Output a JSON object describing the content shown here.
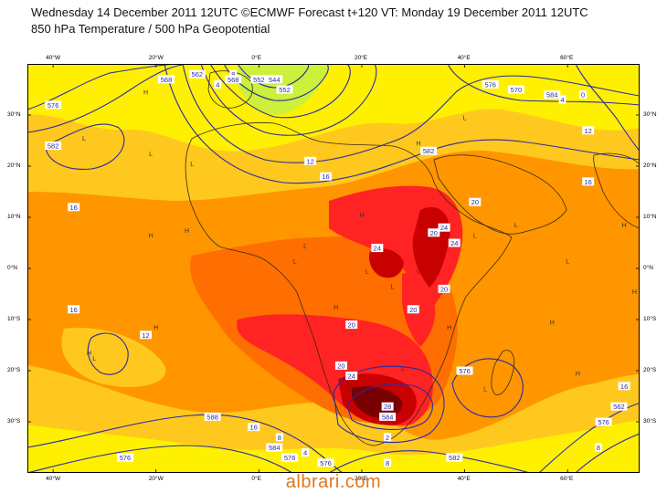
{
  "title_line1": "Wednesday 14 December 2011 12UTC ©ECMWF Forecast t+120 VT: Monday 19 December 2011 12UTC",
  "title_line2": "850 hPa Temperature / 500 hPa Geopotential",
  "watermark": "albrari.com",
  "lon_labels": [
    {
      "text": "40°W",
      "lon": -40
    },
    {
      "text": "20°W",
      "lon": -20
    },
    {
      "text": "0°E",
      "lon": 0
    },
    {
      "text": "20°E",
      "lon": 20
    },
    {
      "text": "40°E",
      "lon": 40
    },
    {
      "text": "60°E",
      "lon": 60
    }
  ],
  "lat_labels": [
    {
      "text": "30°N",
      "lat": 30
    },
    {
      "text": "20°N",
      "lat": 20
    },
    {
      "text": "10°N",
      "lat": 10
    },
    {
      "text": "0°N",
      "lat": 0
    },
    {
      "text": "10°S",
      "lat": -10
    },
    {
      "text": "20°S",
      "lat": -20
    },
    {
      "text": "30°S",
      "lat": -30
    }
  ],
  "colors": {
    "lime": "#ccf03c",
    "yellow": "#fff000",
    "gold": "#ffc81e",
    "orange": "#ff9600",
    "darkorange": "#ff6e00",
    "red": "#ff2323",
    "darkred": "#c80000",
    "maroon": "#780000",
    "contour": "#2a2aa0",
    "coast": "#3a2a10"
  },
  "temperature_labels": [
    {
      "text": "0",
      "lat": 34,
      "lon": 63
    },
    {
      "text": "4",
      "lat": 36,
      "lon": -8
    },
    {
      "text": "4",
      "lat": 33,
      "lon": 59
    },
    {
      "text": "8",
      "lat": 38,
      "lon": -5
    },
    {
      "text": "12",
      "lat": 21,
      "lon": 10
    },
    {
      "text": "12",
      "lat": -13,
      "lon": -22
    },
    {
      "text": "12",
      "lat": 27,
      "lon": 64
    },
    {
      "text": "16",
      "lat": 18,
      "lon": 13
    },
    {
      "text": "16",
      "lat": 12,
      "lon": -36
    },
    {
      "text": "16",
      "lat": -8,
      "lon": -36
    },
    {
      "text": "16",
      "lat": 17,
      "lon": 64
    },
    {
      "text": "16",
      "lat": -23,
      "lon": 71
    },
    {
      "text": "16",
      "lat": -31,
      "lon": -1
    },
    {
      "text": "20",
      "lat": 13,
      "lon": 42
    },
    {
      "text": "20",
      "lat": -11,
      "lon": 18
    },
    {
      "text": "20",
      "lat": -19,
      "lon": 16
    },
    {
      "text": "20",
      "lat": -8,
      "lon": 30
    },
    {
      "text": "20",
      "lat": -4,
      "lon": 36
    },
    {
      "text": "20",
      "lat": 7,
      "lon": 34
    },
    {
      "text": "24",
      "lat": 4,
      "lon": 23
    },
    {
      "text": "24",
      "lat": -21,
      "lon": 18
    },
    {
      "text": "24",
      "lat": 5,
      "lon": 38
    },
    {
      "text": "24",
      "lat": 8,
      "lon": 36
    },
    {
      "text": "28",
      "lat": -27,
      "lon": 25
    }
  ],
  "geopotential_labels": [
    {
      "text": "576",
      "lat": 32,
      "lon": -40
    },
    {
      "text": "568",
      "lat": 37,
      "lon": -18
    },
    {
      "text": "562",
      "lat": 38,
      "lon": -12
    },
    {
      "text": "568",
      "lat": 37,
      "lon": -5
    },
    {
      "text": "552",
      "lat": 37,
      "lon": 0
    },
    {
      "text": "544",
      "lat": 37,
      "lon": 3
    },
    {
      "text": "552",
      "lat": 35,
      "lon": 5
    },
    {
      "text": "576",
      "lat": 36,
      "lon": 45
    },
    {
      "text": "570",
      "lat": 35,
      "lon": 50
    },
    {
      "text": "584",
      "lat": 34,
      "lon": 57
    },
    {
      "text": "582",
      "lat": 24,
      "lon": -40
    },
    {
      "text": "582",
      "lat": 23,
      "lon": 33
    },
    {
      "text": "588",
      "lat": -29,
      "lon": -9
    },
    {
      "text": "576",
      "lat": -37,
      "lon": -26
    },
    {
      "text": "584",
      "lat": -35,
      "lon": 3
    },
    {
      "text": "576",
      "lat": -37,
      "lon": 6
    },
    {
      "text": "584",
      "lat": -29,
      "lon": 25
    },
    {
      "text": "576",
      "lat": -38,
      "lon": 13
    },
    {
      "text": "582",
      "lat": -37,
      "lon": 38
    },
    {
      "text": "576",
      "lat": -20,
      "lon": 40
    },
    {
      "text": "576",
      "lat": -30,
      "lon": 67
    },
    {
      "text": "562",
      "lat": -27,
      "lon": 70
    },
    {
      "text": "8",
      "lat": -33,
      "lon": 4
    },
    {
      "text": "4",
      "lat": -36,
      "lon": 9
    },
    {
      "text": "8",
      "lat": -38,
      "lon": 25
    },
    {
      "text": "8",
      "lat": -35,
      "lon": 66
    },
    {
      "text": "2",
      "lat": -33,
      "lon": 25
    }
  ],
  "pressure_centres": [
    {
      "text": "L",
      "lat": 25,
      "lon": -34
    },
    {
      "text": "L",
      "lat": 22,
      "lon": -21
    },
    {
      "text": "L",
      "lat": 20,
      "lon": -13
    },
    {
      "text": "H",
      "lat": 34,
      "lon": -22
    },
    {
      "text": "H",
      "lat": 6,
      "lon": -21
    },
    {
      "text": "H",
      "lat": 7,
      "lon": -14
    },
    {
      "text": "L",
      "lat": 4,
      "lon": 9
    },
    {
      "text": "L",
      "lat": 1,
      "lon": 7
    },
    {
      "text": "L",
      "lat": -1,
      "lon": 21
    },
    {
      "text": "H",
      "lat": -8,
      "lon": 15
    },
    {
      "text": "L",
      "lat": -4,
      "lon": 26
    },
    {
      "text": "H",
      "lat": 10,
      "lon": 20
    },
    {
      "text": "L",
      "lat": -1,
      "lon": 31
    },
    {
      "text": "H",
      "lat": -12,
      "lon": 37
    },
    {
      "text": "H",
      "lat": -12,
      "lon": -20
    },
    {
      "text": "H",
      "lat": -17,
      "lon": -33
    },
    {
      "text": "L",
      "lat": -18,
      "lon": -32
    },
    {
      "text": "L",
      "lat": -24,
      "lon": 44
    },
    {
      "text": "H",
      "lat": -21,
      "lon": 62
    },
    {
      "text": "L",
      "lat": 1,
      "lon": 60
    },
    {
      "text": "H",
      "lat": -11,
      "lon": 57
    },
    {
      "text": "L",
      "lat": 8,
      "lon": 50
    },
    {
      "text": "L",
      "lat": 6,
      "lon": 42
    },
    {
      "text": "H",
      "lat": -5,
      "lon": 73
    },
    {
      "text": "H",
      "lat": 8,
      "lon": 71
    },
    {
      "text": "L",
      "lat": 29,
      "lon": 40
    },
    {
      "text": "H",
      "lat": 24,
      "lon": 31
    },
    {
      "text": "L",
      "lat": -20,
      "lon": 28
    },
    {
      "text": "H",
      "lat": -24,
      "lon": 18
    }
  ]
}
